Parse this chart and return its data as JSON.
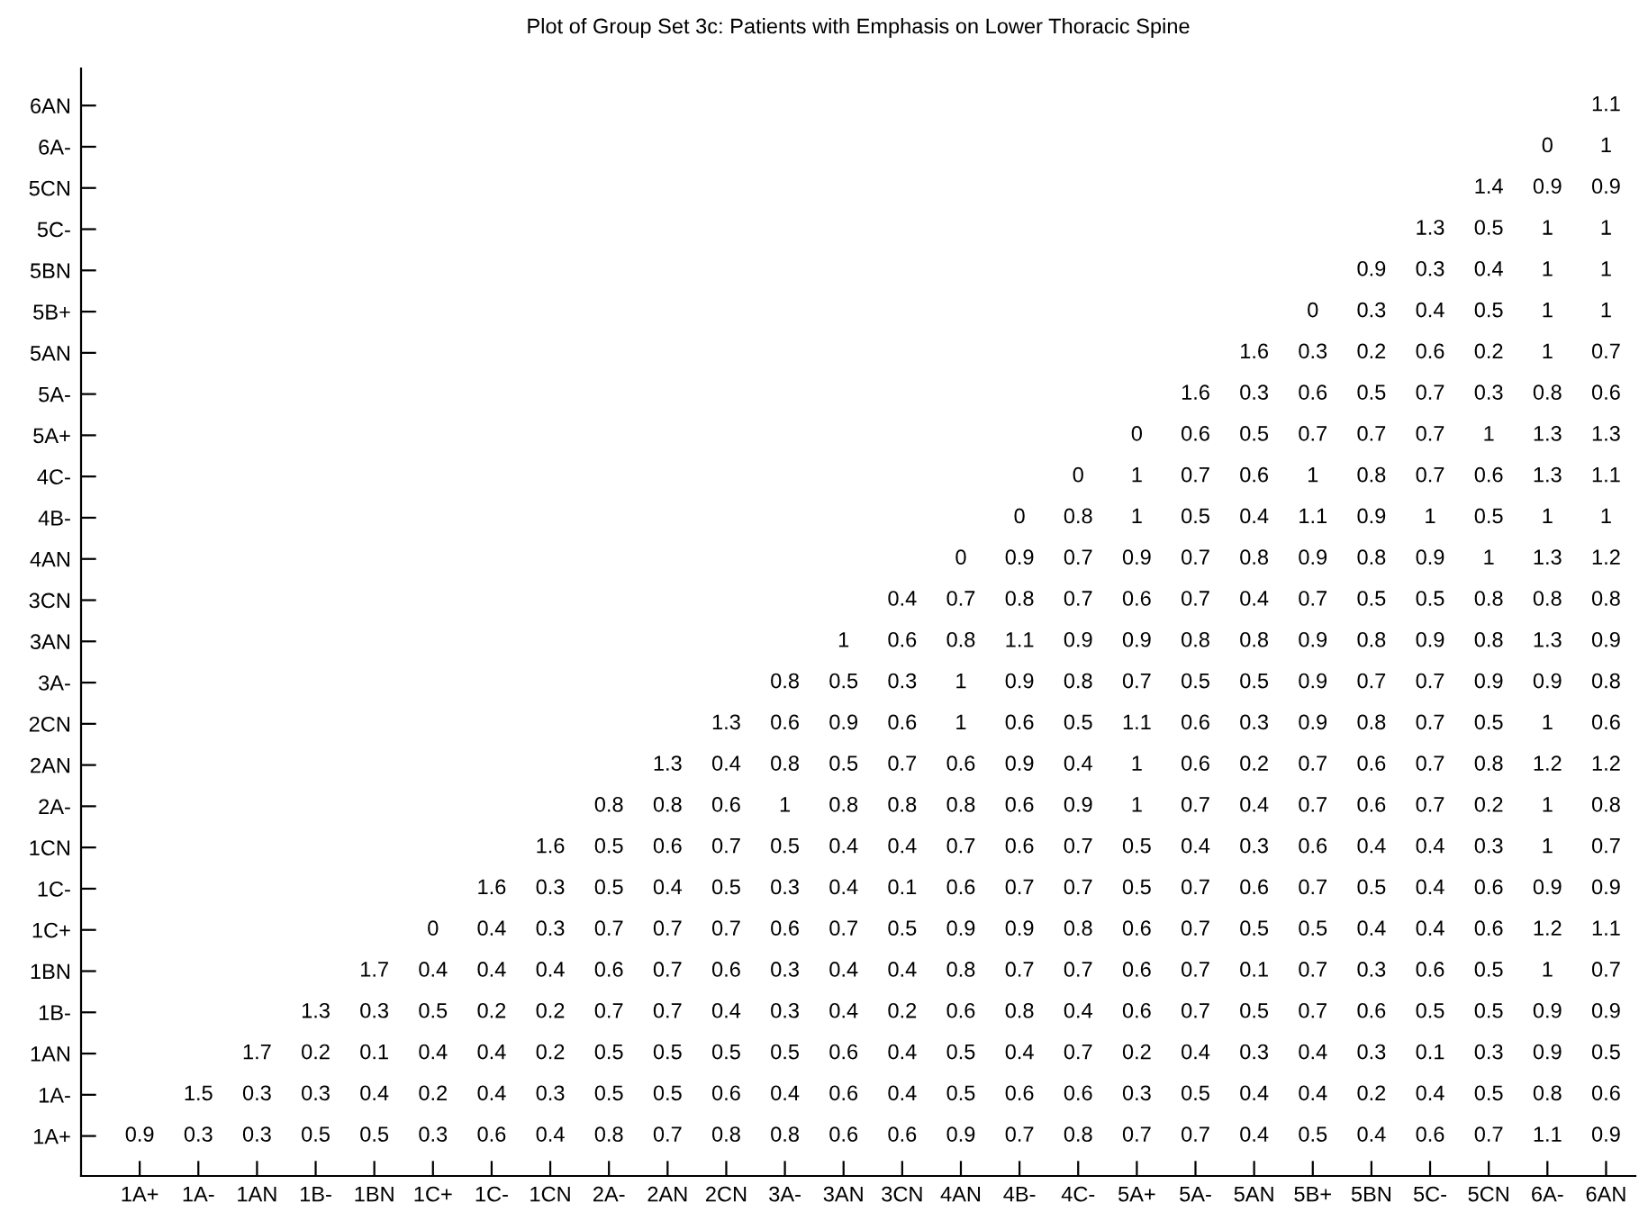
{
  "chart_data": {
    "type": "heatmap",
    "title": "Plot of Group Set 3c: Patients with Emphasis on Lower Thoracic Spine",
    "categories": [
      "1A+",
      "1A-",
      "1AN",
      "1B-",
      "1BN",
      "1C+",
      "1C-",
      "1CN",
      "2A-",
      "2AN",
      "2CN",
      "3A-",
      "3AN",
      "3CN",
      "4AN",
      "4B-",
      "4C-",
      "5A+",
      "5A-",
      "5AN",
      "5B+",
      "5BN",
      "5C-",
      "5CN",
      "6A-",
      "6AN"
    ],
    "y_categories": [
      "6AN",
      "6A-",
      "5CN",
      "5C-",
      "5BN",
      "5B+",
      "5AN",
      "5A-",
      "5A+",
      "4C-",
      "4B-",
      "4AN",
      "3CN",
      "3AN",
      "3A-",
      "2CN",
      "2AN",
      "2A-",
      "1CN",
      "1C-",
      "1C+",
      "1BN",
      "1B-",
      "1AN",
      "1A-",
      "1A+"
    ],
    "color": "#ffffff",
    "data_labels": true,
    "cells": [
      [
        null,
        null,
        null,
        null,
        null,
        null,
        null,
        null,
        null,
        null,
        null,
        null,
        null,
        null,
        null,
        null,
        null,
        null,
        null,
        null,
        null,
        null,
        null,
        null,
        null,
        1.1
      ],
      [
        null,
        null,
        null,
        null,
        null,
        null,
        null,
        null,
        null,
        null,
        null,
        null,
        null,
        null,
        null,
        null,
        null,
        null,
        null,
        null,
        null,
        null,
        null,
        null,
        0,
        1
      ],
      [
        null,
        null,
        null,
        null,
        null,
        null,
        null,
        null,
        null,
        null,
        null,
        null,
        null,
        null,
        null,
        null,
        null,
        null,
        null,
        null,
        null,
        null,
        null,
        1.4,
        0.9,
        0.9
      ],
      [
        null,
        null,
        null,
        null,
        null,
        null,
        null,
        null,
        null,
        null,
        null,
        null,
        null,
        null,
        null,
        null,
        null,
        null,
        null,
        null,
        null,
        null,
        1.3,
        0.5,
        1,
        1
      ],
      [
        null,
        null,
        null,
        null,
        null,
        null,
        null,
        null,
        null,
        null,
        null,
        null,
        null,
        null,
        null,
        null,
        null,
        null,
        null,
        null,
        null,
        0.9,
        0.3,
        0.4,
        1,
        1
      ],
      [
        null,
        null,
        null,
        null,
        null,
        null,
        null,
        null,
        null,
        null,
        null,
        null,
        null,
        null,
        null,
        null,
        null,
        null,
        null,
        null,
        0,
        0.3,
        0.4,
        0.5,
        1,
        1
      ],
      [
        null,
        null,
        null,
        null,
        null,
        null,
        null,
        null,
        null,
        null,
        null,
        null,
        null,
        null,
        null,
        null,
        null,
        null,
        null,
        1.6,
        0.3,
        0.2,
        0.6,
        0.2,
        1,
        0.7
      ],
      [
        null,
        null,
        null,
        null,
        null,
        null,
        null,
        null,
        null,
        null,
        null,
        null,
        null,
        null,
        null,
        null,
        null,
        null,
        1.6,
        0.3,
        0.6,
        0.5,
        0.7,
        0.3,
        0.8,
        0.6
      ],
      [
        null,
        null,
        null,
        null,
        null,
        null,
        null,
        null,
        null,
        null,
        null,
        null,
        null,
        null,
        null,
        null,
        null,
        0,
        0.6,
        0.5,
        0.7,
        0.7,
        0.7,
        1,
        1.3,
        1.3
      ],
      [
        null,
        null,
        null,
        null,
        null,
        null,
        null,
        null,
        null,
        null,
        null,
        null,
        null,
        null,
        null,
        null,
        0,
        1,
        0.7,
        0.6,
        1,
        0.8,
        0.7,
        0.6,
        1.3,
        1.1
      ],
      [
        null,
        null,
        null,
        null,
        null,
        null,
        null,
        null,
        null,
        null,
        null,
        null,
        null,
        null,
        null,
        0,
        0.8,
        1,
        0.5,
        0.4,
        1.1,
        0.9,
        1,
        0.5,
        1,
        1
      ],
      [
        null,
        null,
        null,
        null,
        null,
        null,
        null,
        null,
        null,
        null,
        null,
        null,
        null,
        null,
        0,
        0.9,
        0.7,
        0.9,
        0.7,
        0.8,
        0.9,
        0.8,
        0.9,
        1,
        1.3,
        1.2
      ],
      [
        null,
        null,
        null,
        null,
        null,
        null,
        null,
        null,
        null,
        null,
        null,
        null,
        null,
        0.4,
        0.7,
        0.8,
        0.7,
        0.6,
        0.7,
        0.4,
        0.7,
        0.5,
        0.5,
        0.8,
        0.8,
        0.8
      ],
      [
        null,
        null,
        null,
        null,
        null,
        null,
        null,
        null,
        null,
        null,
        null,
        null,
        1,
        0.6,
        0.8,
        1.1,
        0.9,
        0.9,
        0.8,
        0.8,
        0.9,
        0.8,
        0.9,
        0.8,
        1.3,
        0.9
      ],
      [
        null,
        null,
        null,
        null,
        null,
        null,
        null,
        null,
        null,
        null,
        null,
        0.8,
        0.5,
        0.3,
        1,
        0.9,
        0.8,
        0.7,
        0.5,
        0.5,
        0.9,
        0.7,
        0.7,
        0.9,
        0.9,
        0.8
      ],
      [
        null,
        null,
        null,
        null,
        null,
        null,
        null,
        null,
        null,
        null,
        1.3,
        0.6,
        0.9,
        0.6,
        1,
        0.6,
        0.5,
        1.1,
        0.6,
        0.3,
        0.9,
        0.8,
        0.7,
        0.5,
        1,
        0.6
      ],
      [
        null,
        null,
        null,
        null,
        null,
        null,
        null,
        null,
        null,
        1.3,
        0.4,
        0.8,
        0.5,
        0.7,
        0.6,
        0.9,
        0.4,
        1,
        0.6,
        0.2,
        0.7,
        0.6,
        0.7,
        0.8,
        1.2,
        1.2
      ],
      [
        null,
        null,
        null,
        null,
        null,
        null,
        null,
        null,
        0.8,
        0.8,
        0.6,
        1,
        0.8,
        0.8,
        0.8,
        0.6,
        0.9,
        1,
        0.7,
        0.4,
        0.7,
        0.6,
        0.7,
        0.2,
        1,
        0.8
      ],
      [
        null,
        null,
        null,
        null,
        null,
        null,
        null,
        1.6,
        0.5,
        0.6,
        0.7,
        0.5,
        0.4,
        0.4,
        0.7,
        0.6,
        0.7,
        0.5,
        0.4,
        0.3,
        0.6,
        0.4,
        0.4,
        0.3,
        1,
        0.7
      ],
      [
        null,
        null,
        null,
        null,
        null,
        null,
        1.6,
        0.3,
        0.5,
        0.4,
        0.5,
        0.3,
        0.4,
        0.1,
        0.6,
        0.7,
        0.7,
        0.5,
        0.7,
        0.6,
        0.7,
        0.5,
        0.4,
        0.6,
        0.9,
        0.9
      ],
      [
        null,
        null,
        null,
        null,
        null,
        0,
        0.4,
        0.3,
        0.7,
        0.7,
        0.7,
        0.6,
        0.7,
        0.5,
        0.9,
        0.9,
        0.8,
        0.6,
        0.7,
        0.5,
        0.5,
        0.4,
        0.4,
        0.6,
        1.2,
        1.1
      ],
      [
        null,
        null,
        null,
        null,
        1.7,
        0.4,
        0.4,
        0.4,
        0.6,
        0.7,
        0.6,
        0.3,
        0.4,
        0.4,
        0.8,
        0.7,
        0.7,
        0.6,
        0.7,
        0.1,
        0.7,
        0.3,
        0.6,
        0.5,
        1,
        0.7
      ],
      [
        null,
        null,
        null,
        1.3,
        0.3,
        0.5,
        0.2,
        0.2,
        0.7,
        0.7,
        0.4,
        0.3,
        0.4,
        0.2,
        0.6,
        0.8,
        0.4,
        0.6,
        0.7,
        0.5,
        0.7,
        0.6,
        0.5,
        0.5,
        0.9,
        0.9
      ],
      [
        null,
        null,
        1.7,
        0.2,
        0.1,
        0.4,
        0.4,
        0.2,
        0.5,
        0.5,
        0.5,
        0.5,
        0.6,
        0.4,
        0.5,
        0.4,
        0.7,
        0.2,
        0.4,
        0.3,
        0.4,
        0.3,
        0.1,
        0.3,
        0.9,
        0.5
      ],
      [
        null,
        1.5,
        0.3,
        0.3,
        0.4,
        0.2,
        0.4,
        0.3,
        0.5,
        0.5,
        0.6,
        0.4,
        0.6,
        0.4,
        0.5,
        0.6,
        0.6,
        0.3,
        0.5,
        0.4,
        0.4,
        0.2,
        0.4,
        0.5,
        0.8,
        0.6
      ],
      [
        0.9,
        0.3,
        0.3,
        0.5,
        0.5,
        0.3,
        0.6,
        0.4,
        0.8,
        0.7,
        0.8,
        0.8,
        0.6,
        0.6,
        0.9,
        0.7,
        0.8,
        0.7,
        0.7,
        0.4,
        0.5,
        0.4,
        0.6,
        0.7,
        1.1,
        0.9
      ]
    ]
  }
}
